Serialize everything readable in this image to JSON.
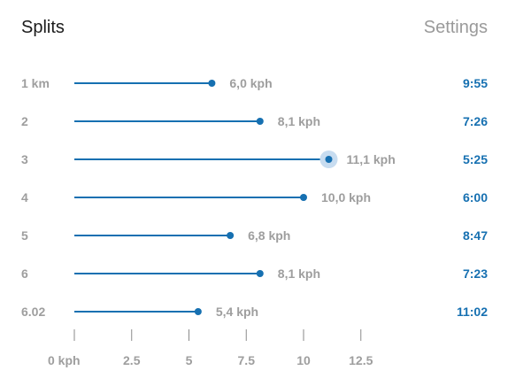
{
  "header": {
    "title": "Splits",
    "settings_label": "Settings"
  },
  "colors": {
    "accent": "#1670b1",
    "muted_text": "#9e9e9e",
    "highlight_ring": "#c7dcf0"
  },
  "chart_data": {
    "type": "lollipop",
    "highlighted_index": 2,
    "rows": [
      {
        "label": "1 km",
        "speed": 6.0,
        "speed_label": "6,0 kph",
        "time": "9:55"
      },
      {
        "label": "2",
        "speed": 8.1,
        "speed_label": "8,1 kph",
        "time": "7:26"
      },
      {
        "label": "3",
        "speed": 11.1,
        "speed_label": "11,1 kph",
        "time": "5:25"
      },
      {
        "label": "4",
        "speed": 10.0,
        "speed_label": "10,0 kph",
        "time": "6:00"
      },
      {
        "label": "5",
        "speed": 6.8,
        "speed_label": "6,8 kph",
        "time": "8:47"
      },
      {
        "label": "6",
        "speed": 8.1,
        "speed_label": "8,1 kph",
        "time": "7:23"
      },
      {
        "label": "6.02",
        "speed": 5.4,
        "speed_label": "5,4 kph",
        "time": "11:02"
      }
    ],
    "x_ticks": [
      {
        "value": 0,
        "label": "0 kph"
      },
      {
        "value": 2.5,
        "label": "2.5"
      },
      {
        "value": 5,
        "label": "5"
      },
      {
        "value": 7.5,
        "label": "7.5"
      },
      {
        "value": 10,
        "label": "10"
      },
      {
        "value": 12.5,
        "label": "12.5"
      }
    ],
    "xlim": [
      0,
      12.5
    ]
  }
}
